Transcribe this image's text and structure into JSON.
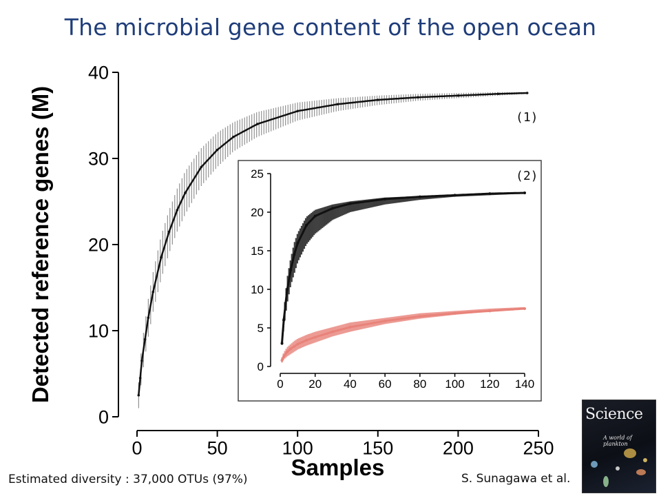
{
  "title": "The microbial gene content of the open ocean",
  "annotation_1": "(1)",
  "annotation_2": "(2)",
  "footer_left": "Estimated diversity : 37,000 OTUs (97%)",
  "footer_right": "S. Sunagawa et al.",
  "cover": {
    "masthead": "Science",
    "subtitle": "A world of plankton",
    "icon": "science-journal-cover-image"
  },
  "colors": {
    "title": "#1f3d7a",
    "series_black": "#111111",
    "series_salmon": "#e8837a"
  },
  "chart_data": [
    {
      "type": "line",
      "xlabel": "Samples",
      "ylabel": "Detected reference genes (M)",
      "xlim": [
        0,
        250
      ],
      "ylim": [
        0,
        40
      ],
      "xticks": [
        "0",
        "50",
        "100",
        "150",
        "200",
        "250"
      ],
      "yticks": [
        "0",
        "10",
        "20",
        "30",
        "40"
      ],
      "grid": false,
      "series": [
        {
          "x": [
            1,
            2,
            3,
            5,
            7,
            10,
            15,
            20,
            25,
            30,
            40,
            50,
            60,
            75,
            100,
            125,
            150,
            175,
            200,
            225,
            243
          ],
          "values": [
            2.5,
            4.5,
            6.5,
            9,
            11.5,
            14.5,
            18.5,
            21.5,
            24,
            26,
            29,
            31,
            32.5,
            34,
            35.5,
            36.3,
            36.8,
            37.1,
            37.3,
            37.5,
            37.6
          ],
          "lower": [
            1,
            2.8,
            4.5,
            7,
            9.3,
            12.2,
            16,
            19,
            21.5,
            23.5,
            26.8,
            29,
            30.8,
            32.5,
            34.4,
            35.5,
            36.2,
            36.7,
            37,
            37.3,
            37.5
          ],
          "upper": [
            4,
            6.2,
            8.5,
            11,
            13.7,
            16.8,
            21,
            24,
            26.5,
            28.5,
            31.2,
            33,
            34.2,
            35.4,
            36.5,
            37,
            37.3,
            37.5,
            37.6,
            37.7,
            37.7
          ]
        }
      ]
    },
    {
      "type": "line",
      "xlabel": "",
      "ylabel": "",
      "xlim": [
        0,
        140
      ],
      "ylim": [
        0,
        25
      ],
      "xticks": [
        "0",
        "20",
        "40",
        "60",
        "80",
        "100",
        "120",
        "140"
      ],
      "yticks": [
        "0",
        "5",
        "10",
        "15",
        "20",
        "25"
      ],
      "grid": false,
      "series": [
        {
          "x": [
            1,
            2,
            4,
            6,
            8,
            10,
            15,
            20,
            30,
            40,
            60,
            80,
            100,
            120,
            140
          ],
          "values": [
            3,
            6,
            10,
            12.5,
            14.5,
            16,
            18.3,
            19.5,
            20.5,
            21.1,
            21.7,
            22,
            22.2,
            22.4,
            22.5
          ],
          "lower": [
            2.8,
            5,
            8.2,
            10.5,
            12,
            13.5,
            15.8,
            17.2,
            19,
            20,
            21,
            21.6,
            22,
            22.2,
            22.4
          ],
          "upper": [
            3.3,
            7,
            11.5,
            14,
            16,
            17.3,
            19.4,
            20.3,
            21,
            21.4,
            21.9,
            22.1,
            22.3,
            22.5,
            22.6
          ]
        },
        {
          "x": [
            1,
            2,
            4,
            6,
            8,
            10,
            15,
            20,
            30,
            40,
            60,
            80,
            100,
            120,
            140
          ],
          "values": [
            0.8,
            1.3,
            1.9,
            2.3,
            2.6,
            2.9,
            3.4,
            3.8,
            4.5,
            5.1,
            5.9,
            6.5,
            6.9,
            7.2,
            7.5
          ],
          "lower": [
            0.5,
            0.9,
            1.3,
            1.6,
            1.9,
            2.2,
            2.7,
            3.1,
            3.9,
            4.5,
            5.5,
            6.2,
            6.7,
            7.1,
            7.4
          ],
          "upper": [
            1.2,
            1.8,
            2.5,
            2.9,
            3.3,
            3.6,
            4.1,
            4.5,
            5.1,
            5.7,
            6.3,
            6.9,
            7.2,
            7.5,
            7.7
          ]
        }
      ]
    }
  ]
}
